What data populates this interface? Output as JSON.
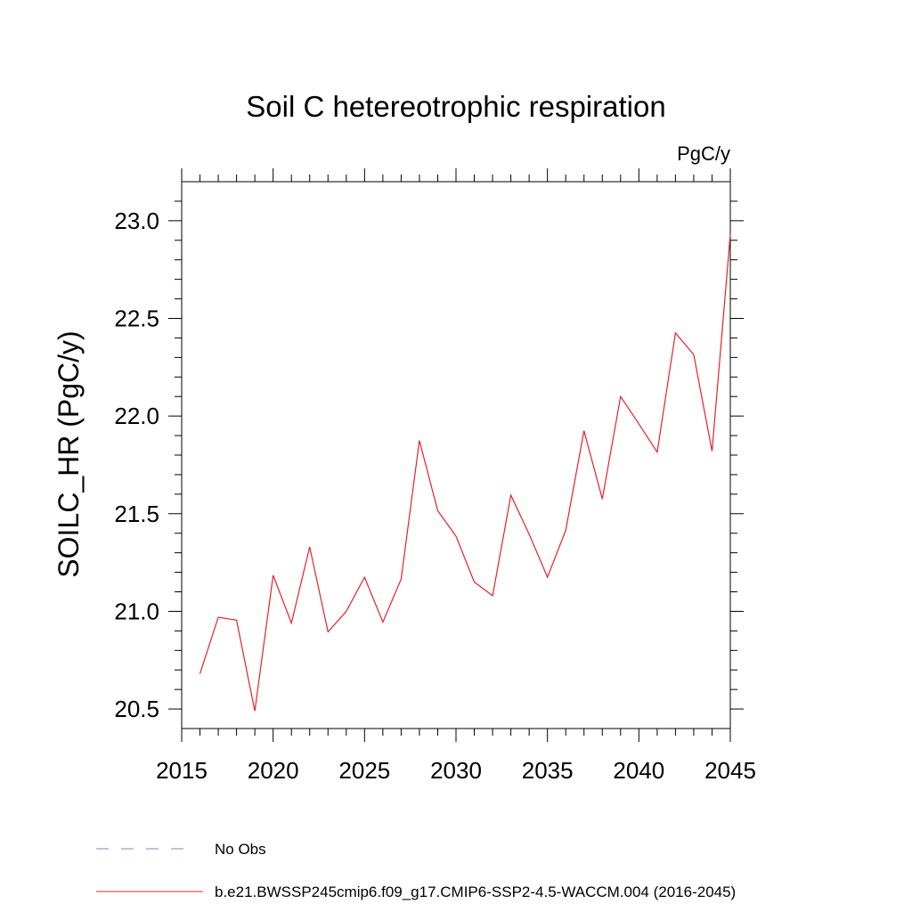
{
  "chart_data": {
    "type": "line",
    "title": "Soil C hetereotrophic respiration",
    "units_label": "PgC/y",
    "ylabel": "SOILC_HR  (PgC/y)",
    "xlabel": "",
    "xlim": [
      2015,
      2045
    ],
    "ylim": [
      20.4,
      23.2
    ],
    "xticks": [
      2015,
      2020,
      2025,
      2030,
      2035,
      2040,
      2045
    ],
    "yticks": [
      20.5,
      21.0,
      21.5,
      22.0,
      22.5,
      23.0
    ],
    "grid": false,
    "legend_position": "bottom-left",
    "series": [
      {
        "name": "b.e21.BWSSP245cmip6.f09_g17.CMIP6-SSP2-4.5-WACCM.004 (2016-2045)",
        "color": "#e8202a",
        "style": "solid",
        "x": [
          2016,
          2017,
          2018,
          2019,
          2020,
          2021,
          2022,
          2023,
          2024,
          2025,
          2026,
          2027,
          2028,
          2029,
          2030,
          2031,
          2032,
          2033,
          2034,
          2035,
          2036,
          2037,
          2038,
          2039,
          2040,
          2041,
          2042,
          2043,
          2044,
          2045
        ],
        "values": [
          20.68,
          20.97,
          20.955,
          20.49,
          21.185,
          20.94,
          21.33,
          20.895,
          21.0,
          21.175,
          20.945,
          21.165,
          21.875,
          21.515,
          21.385,
          21.15,
          21.08,
          21.595,
          21.395,
          21.175,
          21.415,
          21.925,
          21.575,
          22.1,
          21.96,
          21.815,
          22.425,
          22.315,
          21.82,
          22.93
        ]
      },
      {
        "name": "No Obs",
        "color": "#8a7fc0",
        "style": "dashed",
        "x": [],
        "values": []
      }
    ]
  }
}
